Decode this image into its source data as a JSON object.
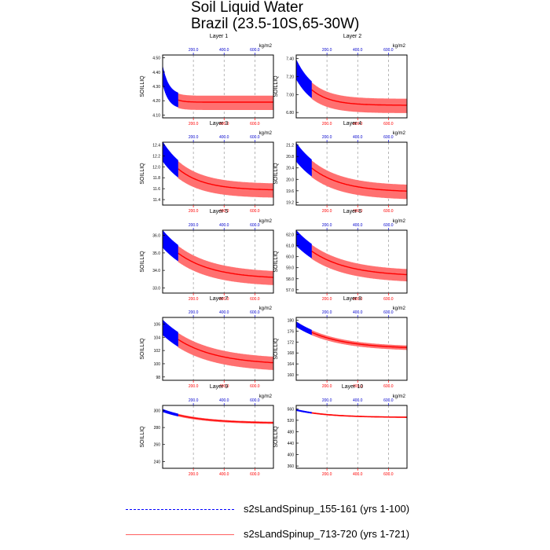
{
  "chart_data": {
    "type": "line",
    "title": "Soil Liquid Water",
    "subtitle": "Brazil (23.5-10S,65-30W)",
    "ylabel": "SOILLIQ",
    "units": "kg/m2",
    "top_axis_color": "#0000cc",
    "bottom_axis_color": "#ff0000",
    "top_ticks": [
      "200.0",
      "400.0",
      "600.0"
    ],
    "bottom_ticks": [
      "200.0",
      "400.0",
      "600.0"
    ],
    "xlim": [
      0,
      721
    ],
    "series": [
      {
        "name": "s2sLandSpinup_155-161 (yrs 1-100)",
        "color": "#0000ff",
        "dash": true,
        "years": [
          1,
          100
        ]
      },
      {
        "name": "s2sLandSpinup_713-720 (yrs 1-721)",
        "color": "#ff0000",
        "dash": false,
        "years": [
          1,
          721
        ]
      }
    ],
    "panels": [
      {
        "label": "Layer 1",
        "yticks": [
          "4.50",
          "4.40",
          "4.30",
          "4.20",
          "4.10"
        ],
        "ylim": [
          4.08,
          4.52
        ],
        "start": 4.38,
        "end": 4.19,
        "tau": 40,
        "amp_start": 0.13,
        "amp_end": 0.1
      },
      {
        "label": "Layer 2",
        "yticks": [
          "7.40",
          "7.20",
          "7.00",
          "6.80"
        ],
        "ylim": [
          6.74,
          7.44
        ],
        "start": 7.28,
        "end": 6.88,
        "tau": 120,
        "amp_start": 0.22,
        "amp_end": 0.16
      },
      {
        "label": "Layer 3",
        "yticks": [
          "12.4",
          "12.2",
          "12.0",
          "11.8",
          "11.6",
          "11.4"
        ],
        "ylim": [
          11.3,
          12.45
        ],
        "start": 12.28,
        "end": 11.57,
        "tau": 170,
        "amp_start": 0.36,
        "amp_end": 0.26
      },
      {
        "label": "Layer 4",
        "yticks": [
          "21.2",
          "20.8",
          "20.4",
          "20.0",
          "19.6",
          "19.2"
        ],
        "ylim": [
          19.1,
          21.3
        ],
        "start": 20.95,
        "end": 19.55,
        "tau": 200,
        "amp_start": 0.65,
        "amp_end": 0.5
      },
      {
        "label": "Layer 5",
        "yticks": [
          "36.0",
          "35.0",
          "34.0",
          "33.0"
        ],
        "ylim": [
          32.7,
          36.3
        ],
        "start": 35.8,
        "end": 33.5,
        "tau": 230,
        "amp_start": 1.0,
        "amp_end": 0.8
      },
      {
        "label": "Layer 6",
        "yticks": [
          "62.0",
          "61.0",
          "60.0",
          "59.0",
          "58.0",
          "57.0"
        ],
        "ylim": [
          56.7,
          62.4
        ],
        "start": 61.7,
        "end": 58.2,
        "tau": 240,
        "amp_start": 1.4,
        "amp_end": 1.1
      },
      {
        "label": "Layer 7",
        "yticks": [
          "106",
          "104",
          "102",
          "100",
          "98"
        ],
        "ylim": [
          97.5,
          107
        ],
        "start": 105.5,
        "end": 99.8,
        "tau": 260,
        "amp_start": 2.3,
        "amp_end": 2.0
      },
      {
        "label": "Layer 8",
        "yticks": [
          "180",
          "176",
          "172",
          "168",
          "164",
          "160"
        ],
        "ylim": [
          158,
          181
        ],
        "start": 178.5,
        "end": 169.5,
        "tau": 250,
        "amp_start": 2.0,
        "amp_end": 1.6
      },
      {
        "label": "Layer 9",
        "yticks": [
          "300",
          "280",
          "260",
          "240"
        ],
        "ylim": [
          232,
          306
        ],
        "start": 300,
        "end": 285,
        "tau": 230,
        "amp_start": 3.5,
        "amp_end": 2.6
      },
      {
        "label": "Layer 10",
        "yticks": [
          "560",
          "520",
          "480",
          "440",
          "400",
          "360"
        ],
        "ylim": [
          352,
          572
        ],
        "start": 556,
        "end": 530,
        "tau": 210,
        "amp_start": 6,
        "amp_end": 4.5
      }
    ]
  }
}
